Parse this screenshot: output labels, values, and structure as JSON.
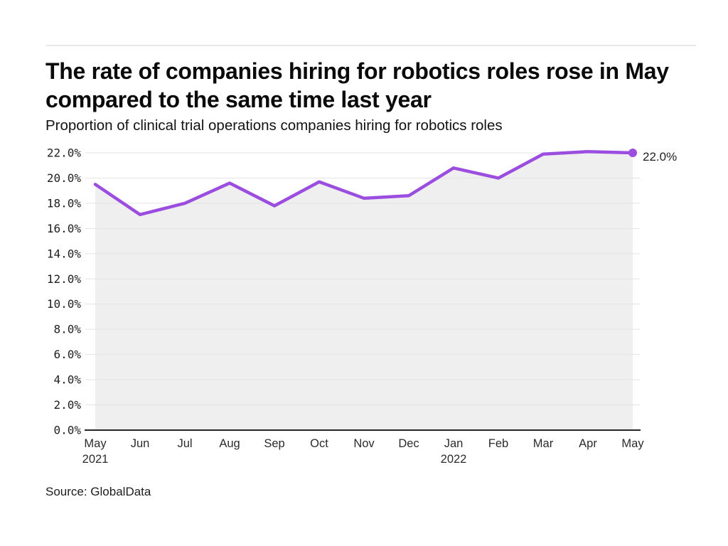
{
  "header": {
    "title_lines": [
      "The rate of companies hiring for robotics roles rose in May",
      "compared to the same time last year"
    ]
  },
  "footer": {
    "source": "Source: GlobalData"
  },
  "chart_data": {
    "type": "area",
    "title": "The rate of companies hiring for robotics roles rose in May compared to the same time last year",
    "subtitle": "Proportion of clinical trial operations companies hiring for robotics roles",
    "source": "Source: GlobalData",
    "categories": [
      "May",
      "Jun",
      "Jul",
      "Aug",
      "Sep",
      "Oct",
      "Nov",
      "Dec",
      "Jan",
      "Feb",
      "Mar",
      "Apr",
      "May"
    ],
    "category_sublabels": [
      "2021",
      "",
      "",
      "",
      "",
      "",
      "",
      "",
      "2022",
      "",
      "",
      "",
      ""
    ],
    "values": [
      19.5,
      17.1,
      18.0,
      19.6,
      17.8,
      19.7,
      18.4,
      18.6,
      20.8,
      20.0,
      21.9,
      22.1,
      22.0
    ],
    "end_point_label": "22.0%",
    "ylim": [
      0,
      22
    ],
    "ytick_step": 2,
    "ytick_labels": [
      "0.0%",
      "2.0%",
      "4.0%",
      "6.0%",
      "8.0%",
      "10.0%",
      "12.0%",
      "14.0%",
      "16.0%",
      "18.0%",
      "20.0%",
      "22.0%"
    ],
    "grid": true,
    "legend": "none",
    "colors": {
      "line": "#9b4de0",
      "area_fill": "#efefef",
      "grid": "#e3e3e3",
      "axis": "#262626",
      "tick_text": "#1f1f1f",
      "background": "#ffffff"
    }
  }
}
